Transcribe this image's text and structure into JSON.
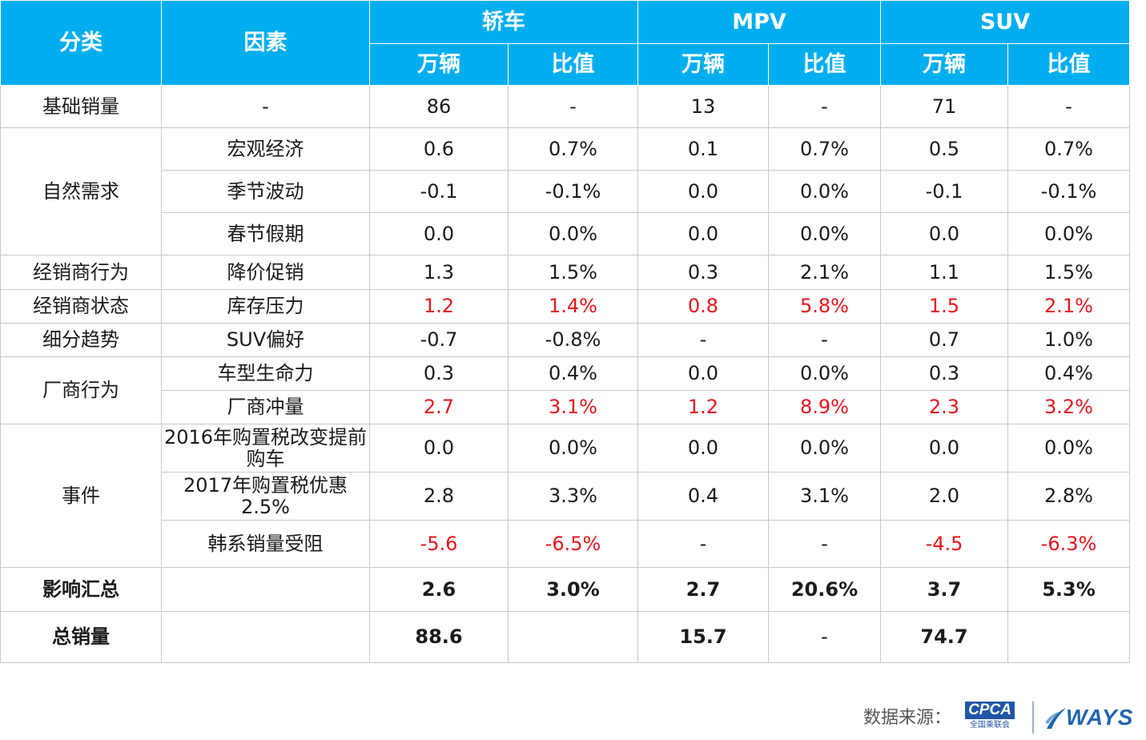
{
  "header": {
    "category": "分类",
    "factor": "因素",
    "groups": [
      "轿车",
      "MPV",
      "SUV"
    ],
    "sub": [
      "万辆",
      "比值",
      "万辆",
      "比值",
      "万辆",
      "比值"
    ]
  },
  "rows": [
    {
      "category": "基础销量",
      "factor": "-",
      "values": [
        "86",
        "-",
        "13",
        "-",
        "71",
        "-"
      ]
    },
    {
      "category": "自然需求",
      "factor": "宏观经济",
      "values": [
        "0.6",
        "0.7%",
        "0.1",
        "0.7%",
        "0.5",
        "0.7%"
      ]
    },
    {
      "factor": "季节波动",
      "values": [
        "-0.1",
        "-0.1%",
        "0.0",
        "0.0%",
        "-0.1",
        "-0.1%"
      ]
    },
    {
      "factor": "春节假期",
      "values": [
        "0.0",
        "0.0%",
        "0.0",
        "0.0%",
        "0.0",
        "0.0%"
      ]
    },
    {
      "category": "经销商行为",
      "factor": "降价促销",
      "values": [
        "1.3",
        "1.5%",
        "0.3",
        "2.1%",
        "1.1",
        "1.5%"
      ]
    },
    {
      "category": "经销商状态",
      "factor": "库存压力",
      "values": [
        "1.2",
        "1.4%",
        "0.8",
        "5.8%",
        "1.5",
        "2.1%"
      ]
    },
    {
      "category": "细分趋势",
      "factor": "SUV偏好",
      "values": [
        "-0.7",
        "-0.8%",
        "-",
        "-",
        "0.7",
        "1.0%"
      ]
    },
    {
      "category": "厂商行为",
      "factor": "车型生命力",
      "values": [
        "0.3",
        "0.4%",
        "0.0",
        "0.0%",
        "0.3",
        "0.4%"
      ]
    },
    {
      "factor": "厂商冲量",
      "values": [
        "2.7",
        "3.1%",
        "1.2",
        "8.9%",
        "2.3",
        "3.2%"
      ]
    },
    {
      "category": "事件",
      "factor": "2016年购置税改变提前购车",
      "values": [
        "0.0",
        "0.0%",
        "0.0",
        "0.0%",
        "0.0",
        "0.0%"
      ]
    },
    {
      "factor": "2017年购置税优惠2.5%",
      "values": [
        "2.8",
        "3.3%",
        "0.4",
        "3.1%",
        "2.0",
        "2.8%"
      ]
    },
    {
      "factor": "韩系销量受阻",
      "values": [
        "-5.6",
        "-6.5%",
        "-",
        "-",
        "-4.5",
        "-6.3%"
      ]
    },
    {
      "category": "影响汇总",
      "factor": "",
      "values": [
        "2.6",
        "3.0%",
        "2.7",
        "20.6%",
        "3.7",
        "5.3%"
      ]
    },
    {
      "category": "总销量",
      "factor": "",
      "values": [
        "88.6",
        "",
        "15.7",
        "-",
        "74.7",
        ""
      ]
    }
  ],
  "footer": {
    "source_label": "数据来源：",
    "cpca_logo": "CPCA",
    "cpca_sub": "全国乘联会",
    "ways_logo": "WAYS"
  },
  "colors": {
    "header_bg": "#00aeef",
    "highlight": "#e8141c"
  }
}
